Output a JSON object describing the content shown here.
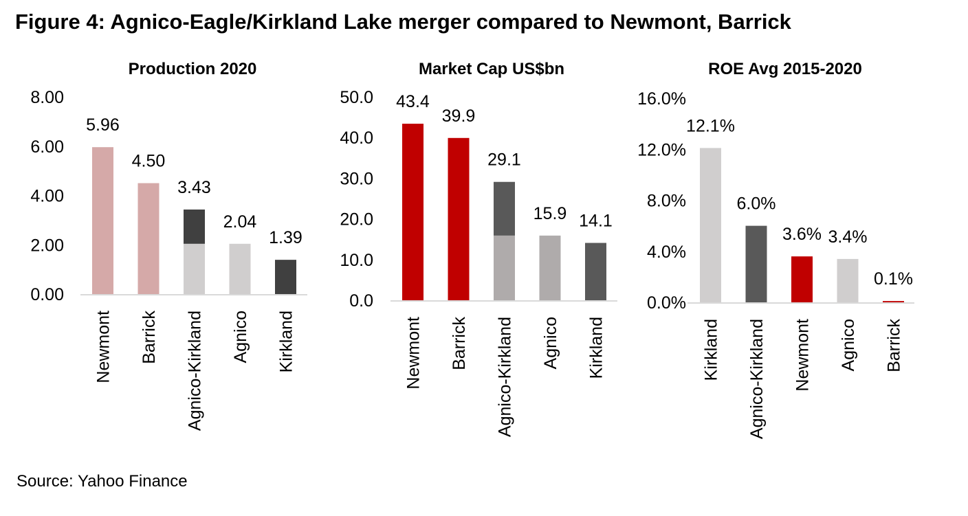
{
  "figure_title": "Figure 4: Agnico-Eagle/Kirkland Lake merger compared to Newmont, Barrick",
  "source": "Source: Yahoo Finance",
  "chart_data": [
    {
      "type": "bar",
      "stacked": true,
      "title": "Production 2020",
      "categories": [
        "Newmont",
        "Barrick",
        "Agnico-Kirkland",
        "Agnico",
        "Kirkland"
      ],
      "segments": [
        [
          5.96
        ],
        [
          4.5
        ],
        [
          2.04,
          1.39
        ],
        [
          2.04
        ],
        [
          1.39
        ]
      ],
      "segment_colors": [
        [
          "#d5a9a8"
        ],
        [
          "#d5a9a8"
        ],
        [
          "#d0cece",
          "#404040"
        ],
        [
          "#d0cece"
        ],
        [
          "#404040"
        ]
      ],
      "labels": [
        "5.96",
        "4.50",
        "3.43",
        "2.04",
        "1.39"
      ],
      "yticks": [
        "0.00",
        "2.00",
        "4.00",
        "6.00",
        "8.00"
      ],
      "ylim": [
        0,
        8
      ],
      "xlabel": "",
      "ylabel": "",
      "grid": false
    },
    {
      "type": "bar",
      "stacked": true,
      "title": "Market Cap US$bn",
      "categories": [
        "Newmont",
        "Barrick",
        "Agnico-Kirkland",
        "Agnico",
        "Kirkland"
      ],
      "segments": [
        [
          43.4
        ],
        [
          39.9
        ],
        [
          15.9,
          13.2
        ],
        [
          15.9
        ],
        [
          14.1
        ]
      ],
      "segment_colors": [
        [
          "#c00000"
        ],
        [
          "#c00000"
        ],
        [
          "#afabab",
          "#595959"
        ],
        [
          "#afabab"
        ],
        [
          "#595959"
        ]
      ],
      "labels": [
        "43.4",
        "39.9",
        "29.1",
        "15.9",
        "14.1"
      ],
      "yticks": [
        "0.0",
        "10.0",
        "20.0",
        "30.0",
        "40.0",
        "50.0"
      ],
      "ylim": [
        0,
        50
      ],
      "xlabel": "",
      "ylabel": "",
      "grid": false
    },
    {
      "type": "bar",
      "stacked": false,
      "title": "ROE Avg 2015-2020",
      "categories": [
        "Kirkland",
        "Agnico-Kirkland",
        "Newmont",
        "Agnico",
        "Barrick"
      ],
      "segments": [
        [
          12.1
        ],
        [
          6.0
        ],
        [
          3.6
        ],
        [
          3.4
        ],
        [
          0.1
        ]
      ],
      "segment_colors": [
        [
          "#d0cece"
        ],
        [
          "#595959"
        ],
        [
          "#c00000"
        ],
        [
          "#d0cece"
        ],
        [
          "#c00000"
        ]
      ],
      "labels": [
        "12.1%",
        "6.0%",
        "3.6%",
        "3.4%",
        "0.1%"
      ],
      "yticks": [
        "0.0%",
        "4.0%",
        "8.0%",
        "12.0%",
        "16.0%"
      ],
      "ylim": [
        0,
        16
      ],
      "xlabel": "",
      "ylabel": "",
      "grid": false
    }
  ]
}
